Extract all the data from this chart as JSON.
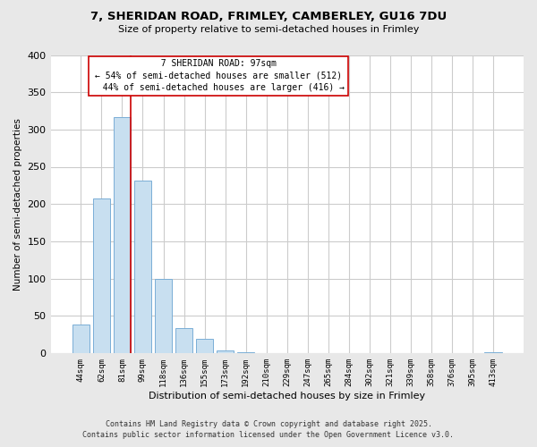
{
  "title_line1": "7, SHERIDAN ROAD, FRIMLEY, CAMBERLEY, GU16 7DU",
  "title_line2": "Size of property relative to semi-detached houses in Frimley",
  "bar_labels": [
    "44sqm",
    "62sqm",
    "81sqm",
    "99sqm",
    "118sqm",
    "136sqm",
    "155sqm",
    "173sqm",
    "192sqm",
    "210sqm",
    "229sqm",
    "247sqm",
    "265sqm",
    "284sqm",
    "302sqm",
    "321sqm",
    "339sqm",
    "358sqm",
    "376sqm",
    "395sqm",
    "413sqm"
  ],
  "bar_values": [
    38,
    207,
    317,
    232,
    99,
    34,
    19,
    4,
    1,
    0,
    0,
    0,
    0,
    0,
    0,
    0,
    0,
    0,
    0,
    0,
    1
  ],
  "bar_color": "#c8dff0",
  "bar_edge_color": "#7aaed6",
  "xlabel": "Distribution of semi-detached houses by size in Frimley",
  "ylabel": "Number of semi-detached properties",
  "ylim": [
    0,
    400
  ],
  "yticks": [
    0,
    50,
    100,
    150,
    200,
    250,
    300,
    350,
    400
  ],
  "property_label": "7 SHERIDAN ROAD: 97sqm",
  "pct_smaller": 54,
  "count_smaller": 512,
  "pct_larger": 44,
  "count_larger": 416,
  "vline_color": "#cc0000",
  "annotation_box_color": "white",
  "annotation_box_edge": "#cc0000",
  "footer_line1": "Contains HM Land Registry data © Crown copyright and database right 2025.",
  "footer_line2": "Contains public sector information licensed under the Open Government Licence v3.0.",
  "bg_color": "#e8e8e8",
  "plot_bg_color": "white",
  "grid_color": "#cccccc",
  "vline_x_bar_index": 3
}
